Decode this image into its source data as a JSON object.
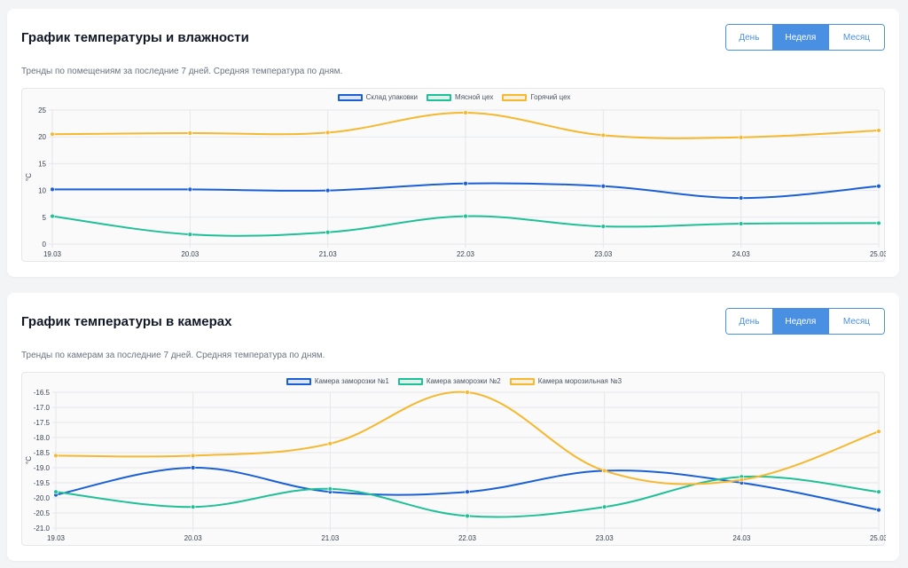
{
  "charts": [
    {
      "title": "График температуры и влажности",
      "subtitle": "Тренды по помещениям за последние 7 дней. Средняя температура по дням.",
      "periods": [
        {
          "label": "День",
          "active": false
        },
        {
          "label": "Неделя",
          "active": true
        },
        {
          "label": "Месяц",
          "active": false
        }
      ]
    },
    {
      "title": "График температуры в камерах",
      "subtitle": "Тренды по камерам за последние 7 дней. Средняя температура по дням.",
      "periods": [
        {
          "label": "День",
          "active": false
        },
        {
          "label": "Неделя",
          "active": true
        },
        {
          "label": "Месяц",
          "active": false
        }
      ]
    }
  ],
  "chart_data": [
    {
      "type": "line",
      "title": "График температуры и влажности",
      "xlabel": "",
      "ylabel": "°C",
      "categories": [
        "19.03",
        "20.03",
        "21.03",
        "22.03",
        "23.03",
        "24.03",
        "25.03"
      ],
      "ylim": [
        0,
        25
      ],
      "yticks": [
        0,
        5,
        10,
        15,
        20,
        25
      ],
      "ytick_labels": [
        "0",
        "5",
        "10",
        "15",
        "20",
        "25"
      ],
      "grid": true,
      "legend": "top-center",
      "series": [
        {
          "name": "Склад упаковки",
          "color": "#1a5fd6",
          "values": [
            10.2,
            10.2,
            10.0,
            11.3,
            10.8,
            8.6,
            10.8
          ]
        },
        {
          "name": "Мясной цех",
          "color": "#20c097",
          "values": [
            5.2,
            1.8,
            2.2,
            5.2,
            3.3,
            3.8,
            3.9
          ]
        },
        {
          "name": "Горячий цех",
          "color": "#f5b82e",
          "values": [
            20.5,
            20.7,
            20.8,
            24.5,
            20.3,
            19.9,
            21.2
          ]
        }
      ]
    },
    {
      "type": "line",
      "title": "График температуры в камерах",
      "xlabel": "",
      "ylabel": "°C",
      "categories": [
        "19.03",
        "20.03",
        "21.03",
        "22.03",
        "23.03",
        "24.03",
        "25.03"
      ],
      "ylim": [
        -21.0,
        -16.5
      ],
      "yticks": [
        -21.0,
        -20.5,
        -20.0,
        -19.5,
        -19.0,
        -18.5,
        -18.0,
        -17.5,
        -17.0,
        -16.5
      ],
      "ytick_labels": [
        "-21.0",
        "-20.5",
        "-20.0",
        "-19.5",
        "-19.0",
        "-18.5",
        "-18.0",
        "-17.5",
        "-17.0",
        "-16.5"
      ],
      "grid": true,
      "legend": "top-center",
      "series": [
        {
          "name": "Камера заморозки №1",
          "color": "#1a5fd6",
          "values": [
            -19.9,
            -19.0,
            -19.8,
            -19.8,
            -19.1,
            -19.5,
            -20.4
          ]
        },
        {
          "name": "Камера заморозки №2",
          "color": "#20c097",
          "values": [
            -19.8,
            -20.3,
            -19.7,
            -20.6,
            -20.3,
            -19.3,
            -19.8
          ]
        },
        {
          "name": "Камера морозильная №3",
          "color": "#f5b82e",
          "values": [
            -18.6,
            -18.6,
            -18.2,
            -16.5,
            -19.1,
            -19.4,
            -17.8
          ]
        }
      ]
    }
  ]
}
